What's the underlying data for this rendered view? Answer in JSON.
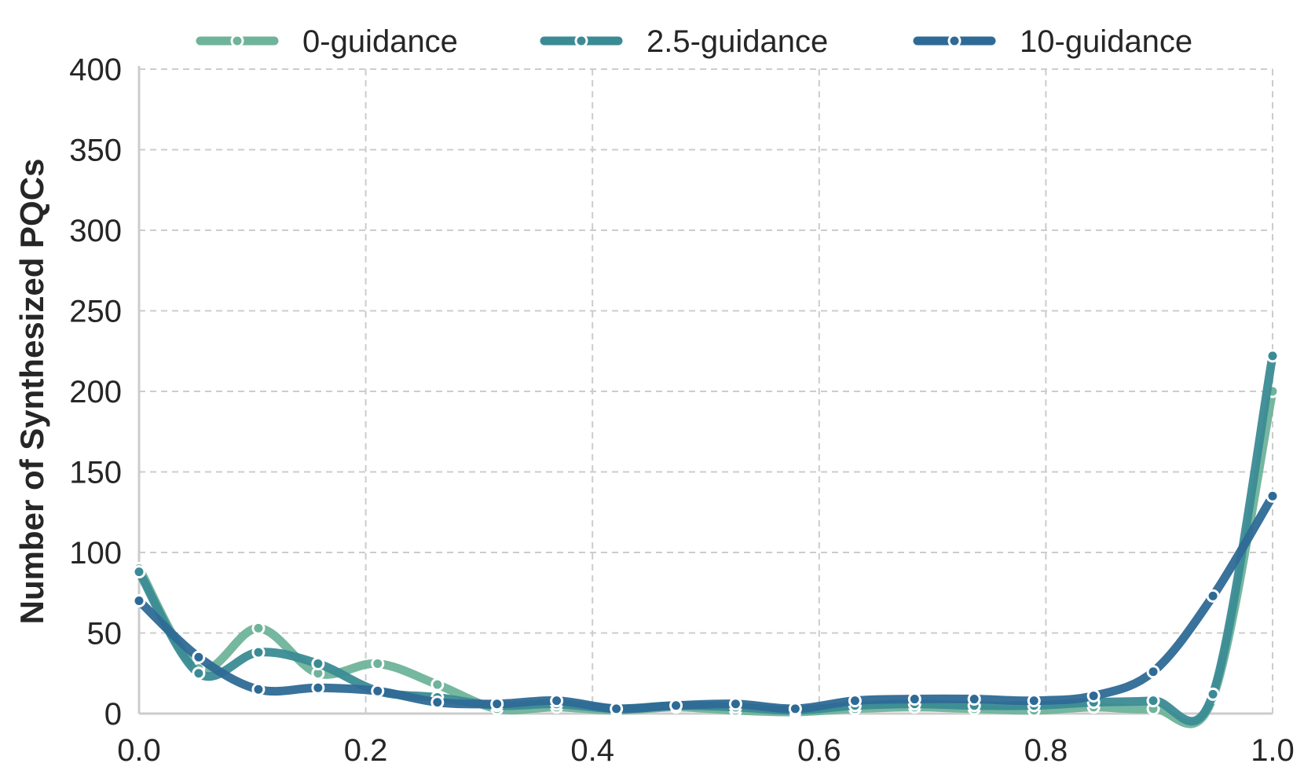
{
  "chart_data": {
    "type": "line",
    "title": "",
    "xlabel": "",
    "ylabel": "Number of Synthesized PQCs",
    "xlim": [
      0.0,
      1.0
    ],
    "ylim": [
      0,
      400
    ],
    "x_ticks": [
      "0.0",
      "0.2",
      "0.4",
      "0.6",
      "0.8",
      "1.0"
    ],
    "y_ticks": [
      "0",
      "50",
      "100",
      "150",
      "200",
      "250",
      "300",
      "350",
      "400"
    ],
    "grid": true,
    "legend_position": "top-center",
    "x": [
      0.0,
      0.0526,
      0.1053,
      0.1579,
      0.2105,
      0.2632,
      0.3158,
      0.3684,
      0.4211,
      0.4737,
      0.5263,
      0.5789,
      0.6316,
      0.6842,
      0.7368,
      0.7895,
      0.8421,
      0.8947,
      0.9474,
      1.0
    ],
    "series": [
      {
        "name": "0-guidance",
        "color": "#6fb39a",
        "values": [
          90,
          28,
          53,
          25,
          31,
          18,
          3,
          4,
          2,
          4,
          2,
          1,
          3,
          4,
          3,
          2,
          4,
          3,
          10,
          200
        ]
      },
      {
        "name": "2.5-guidance",
        "color": "#3b8b95",
        "values": [
          88,
          25,
          38,
          31,
          14,
          10,
          5,
          6,
          3,
          5,
          4,
          2,
          5,
          6,
          5,
          5,
          7,
          8,
          12,
          222
        ]
      },
      {
        "name": "10-guidance",
        "color": "#2e6a96",
        "values": [
          70,
          35,
          15,
          16,
          14,
          7,
          6,
          8,
          3,
          5,
          6,
          3,
          8,
          9,
          9,
          8,
          11,
          26,
          73,
          135
        ]
      }
    ]
  }
}
